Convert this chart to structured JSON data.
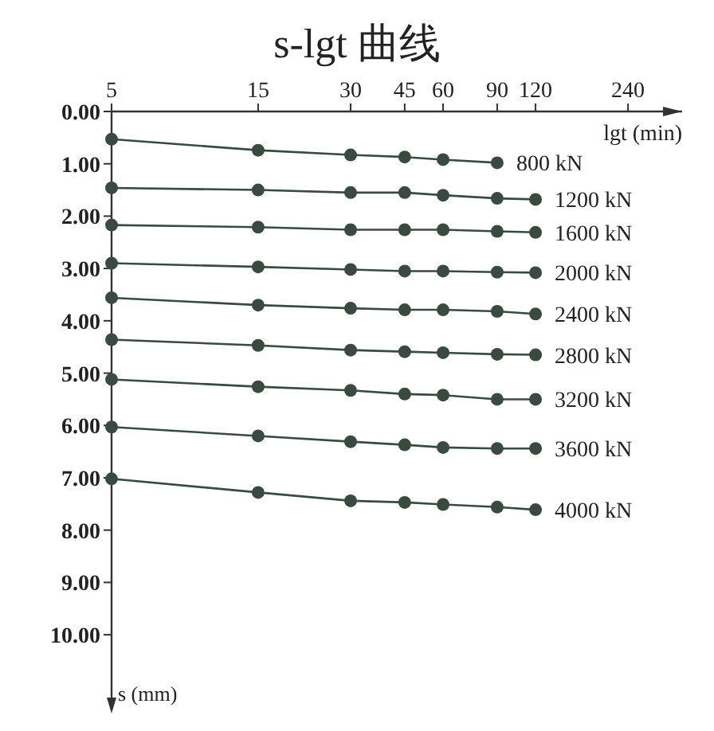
{
  "chart_data": {
    "type": "line",
    "title": "s-lgt 曲线",
    "xlabel": "lgt (min)",
    "ylabel": "s (mm)",
    "log": "x",
    "xlim": [
      5,
      360
    ],
    "xticks": [
      5,
      15,
      30,
      45,
      60,
      90,
      120,
      240
    ],
    "ylim": [
      11.2,
      0
    ],
    "yticks": [
      {
        "value": 0,
        "label": "0.00"
      },
      {
        "value": 1,
        "label": "1.00"
      },
      {
        "value": 2,
        "label": "2.00"
      },
      {
        "value": 3,
        "label": "3.00"
      },
      {
        "value": 4,
        "label": "4.00"
      },
      {
        "value": 5,
        "label": "5.00"
      },
      {
        "value": 6,
        "label": "6.00"
      },
      {
        "value": 7,
        "label": "7.00"
      },
      {
        "value": 8,
        "label": "8.00"
      },
      {
        "value": 9,
        "label": "9.00"
      },
      {
        "value": 10,
        "label": "10.00"
      }
    ],
    "grid": false,
    "marker": "circle",
    "line_style": "solid",
    "series": [
      {
        "name": "800 kN",
        "color": "#3a4a40",
        "x": [
          5,
          15,
          30,
          45,
          60,
          90
        ],
        "values": [
          0.53,
          0.74,
          0.83,
          0.87,
          0.92,
          0.98
        ]
      },
      {
        "name": "1200 kN",
        "color": "#3a4a40",
        "x": [
          5,
          15,
          30,
          45,
          60,
          90,
          120
        ],
        "values": [
          1.46,
          1.5,
          1.55,
          1.55,
          1.6,
          1.66,
          1.68
        ]
      },
      {
        "name": "1600 kN",
        "color": "#3a4a40",
        "x": [
          5,
          15,
          30,
          45,
          60,
          90,
          120
        ],
        "values": [
          2.17,
          2.21,
          2.26,
          2.26,
          2.26,
          2.29,
          2.31
        ]
      },
      {
        "name": "2000 kN",
        "color": "#3a4a40",
        "x": [
          5,
          15,
          30,
          45,
          60,
          90,
          120
        ],
        "values": [
          2.9,
          2.97,
          3.02,
          3.05,
          3.05,
          3.07,
          3.08
        ]
      },
      {
        "name": "2400 kN",
        "color": "#3a4a40",
        "x": [
          5,
          15,
          30,
          45,
          60,
          90,
          120
        ],
        "values": [
          3.56,
          3.7,
          3.76,
          3.79,
          3.79,
          3.82,
          3.87
        ]
      },
      {
        "name": "2800 kN",
        "color": "#3a4a40",
        "x": [
          5,
          15,
          30,
          45,
          60,
          90,
          120
        ],
        "values": [
          4.36,
          4.47,
          4.56,
          4.59,
          4.61,
          4.64,
          4.65
        ]
      },
      {
        "name": "3200 kN",
        "color": "#3a4a40",
        "x": [
          5,
          15,
          30,
          45,
          60,
          90,
          120
        ],
        "values": [
          5.12,
          5.26,
          5.33,
          5.4,
          5.42,
          5.5,
          5.5
        ]
      },
      {
        "name": "3600 kN",
        "color": "#3a4a40",
        "x": [
          5,
          15,
          30,
          45,
          60,
          90,
          120
        ],
        "values": [
          6.03,
          6.2,
          6.31,
          6.37,
          6.42,
          6.44,
          6.44
        ]
      },
      {
        "name": "4000 kN",
        "color": "#3a4a40",
        "x": [
          5,
          15,
          30,
          45,
          60,
          90,
          120
        ],
        "values": [
          7.02,
          7.28,
          7.44,
          7.47,
          7.51,
          7.56,
          7.61
        ]
      }
    ]
  }
}
